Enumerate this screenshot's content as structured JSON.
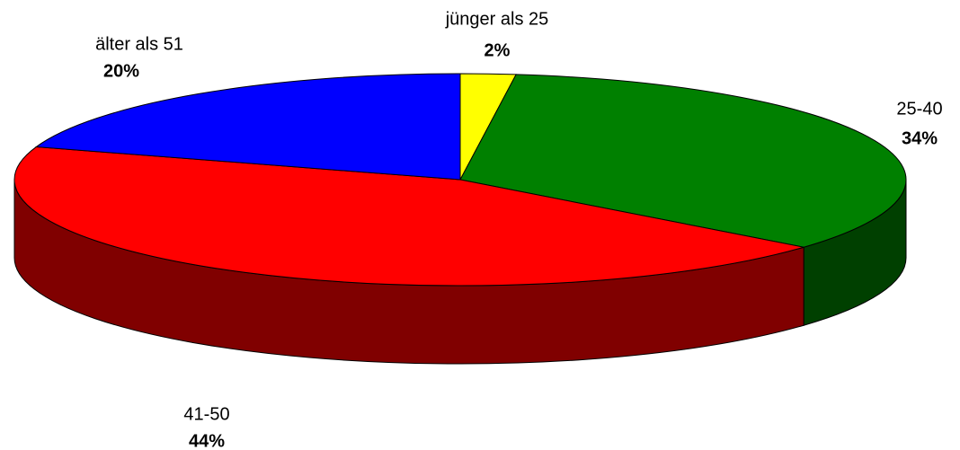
{
  "chart_data": {
    "type": "pie3d",
    "categories": [
      "jünger als 25",
      "25-40",
      "41-50",
      "älter als 51"
    ],
    "values": [
      2,
      34,
      44,
      20
    ],
    "value_labels": [
      "2%",
      "34%",
      "44%",
      "20%"
    ],
    "colors": [
      "#ffff00",
      "#008000",
      "#ff0000",
      "#0000ff"
    ],
    "side_colors": [
      "#808000",
      "#004000",
      "#800000",
      "#000080"
    ]
  }
}
